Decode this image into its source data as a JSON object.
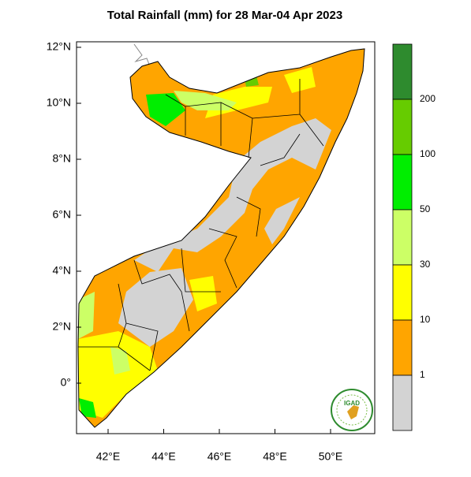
{
  "map": {
    "title": "Total Rainfall (mm) for 28 Mar-04 Apr 2023",
    "lat_labels": [
      "12°N",
      "10°N",
      "8°N",
      "6°N",
      "4°N",
      "2°N",
      "0°"
    ],
    "lon_labels": [
      "42°E",
      "44°E",
      "46°E",
      "48°E",
      "50°E"
    ],
    "colorbar": {
      "levels": [
        200,
        100,
        50,
        30,
        10,
        1
      ],
      "colors": [
        "#2e8b2e",
        "#66cc00",
        "#00ee00",
        "#ccff66",
        "#ffff00",
        "#ffa500",
        "#d3d3d3"
      ]
    },
    "logo_text": "IGAD"
  }
}
